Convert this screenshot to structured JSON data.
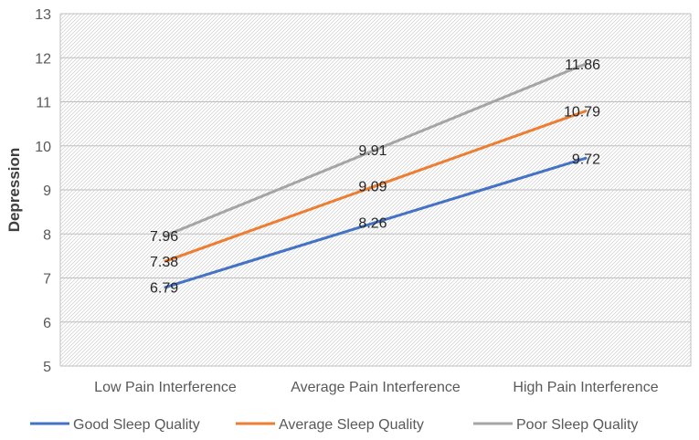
{
  "chart_data": {
    "type": "line",
    "title": "",
    "xlabel": "",
    "ylabel": "Depression",
    "ylim": [
      5,
      13
    ],
    "ytick_step": 1,
    "grid": true,
    "background_pattern": "diagonal-hatch",
    "legend_position": "bottom",
    "categories": [
      "Low Pain Interference",
      "Average Pain Interference",
      "High Pain Interference"
    ],
    "series": [
      {
        "name": "Good Sleep Quality",
        "color": "#4472C4",
        "values": [
          6.79,
          8.26,
          9.72
        ],
        "labels": [
          "6.79",
          "8.26",
          "9.72"
        ]
      },
      {
        "name": "Average Sleep Quality",
        "color": "#ED7D31",
        "values": [
          7.38,
          9.09,
          10.79
        ],
        "labels": [
          "7.38",
          "9.09",
          "10.79"
        ]
      },
      {
        "name": "Poor Sleep Quality",
        "color": "#A5A5A5",
        "values": [
          7.96,
          9.91,
          11.86
        ],
        "labels": [
          "7.96",
          "9.91",
          "11.86"
        ]
      }
    ]
  }
}
